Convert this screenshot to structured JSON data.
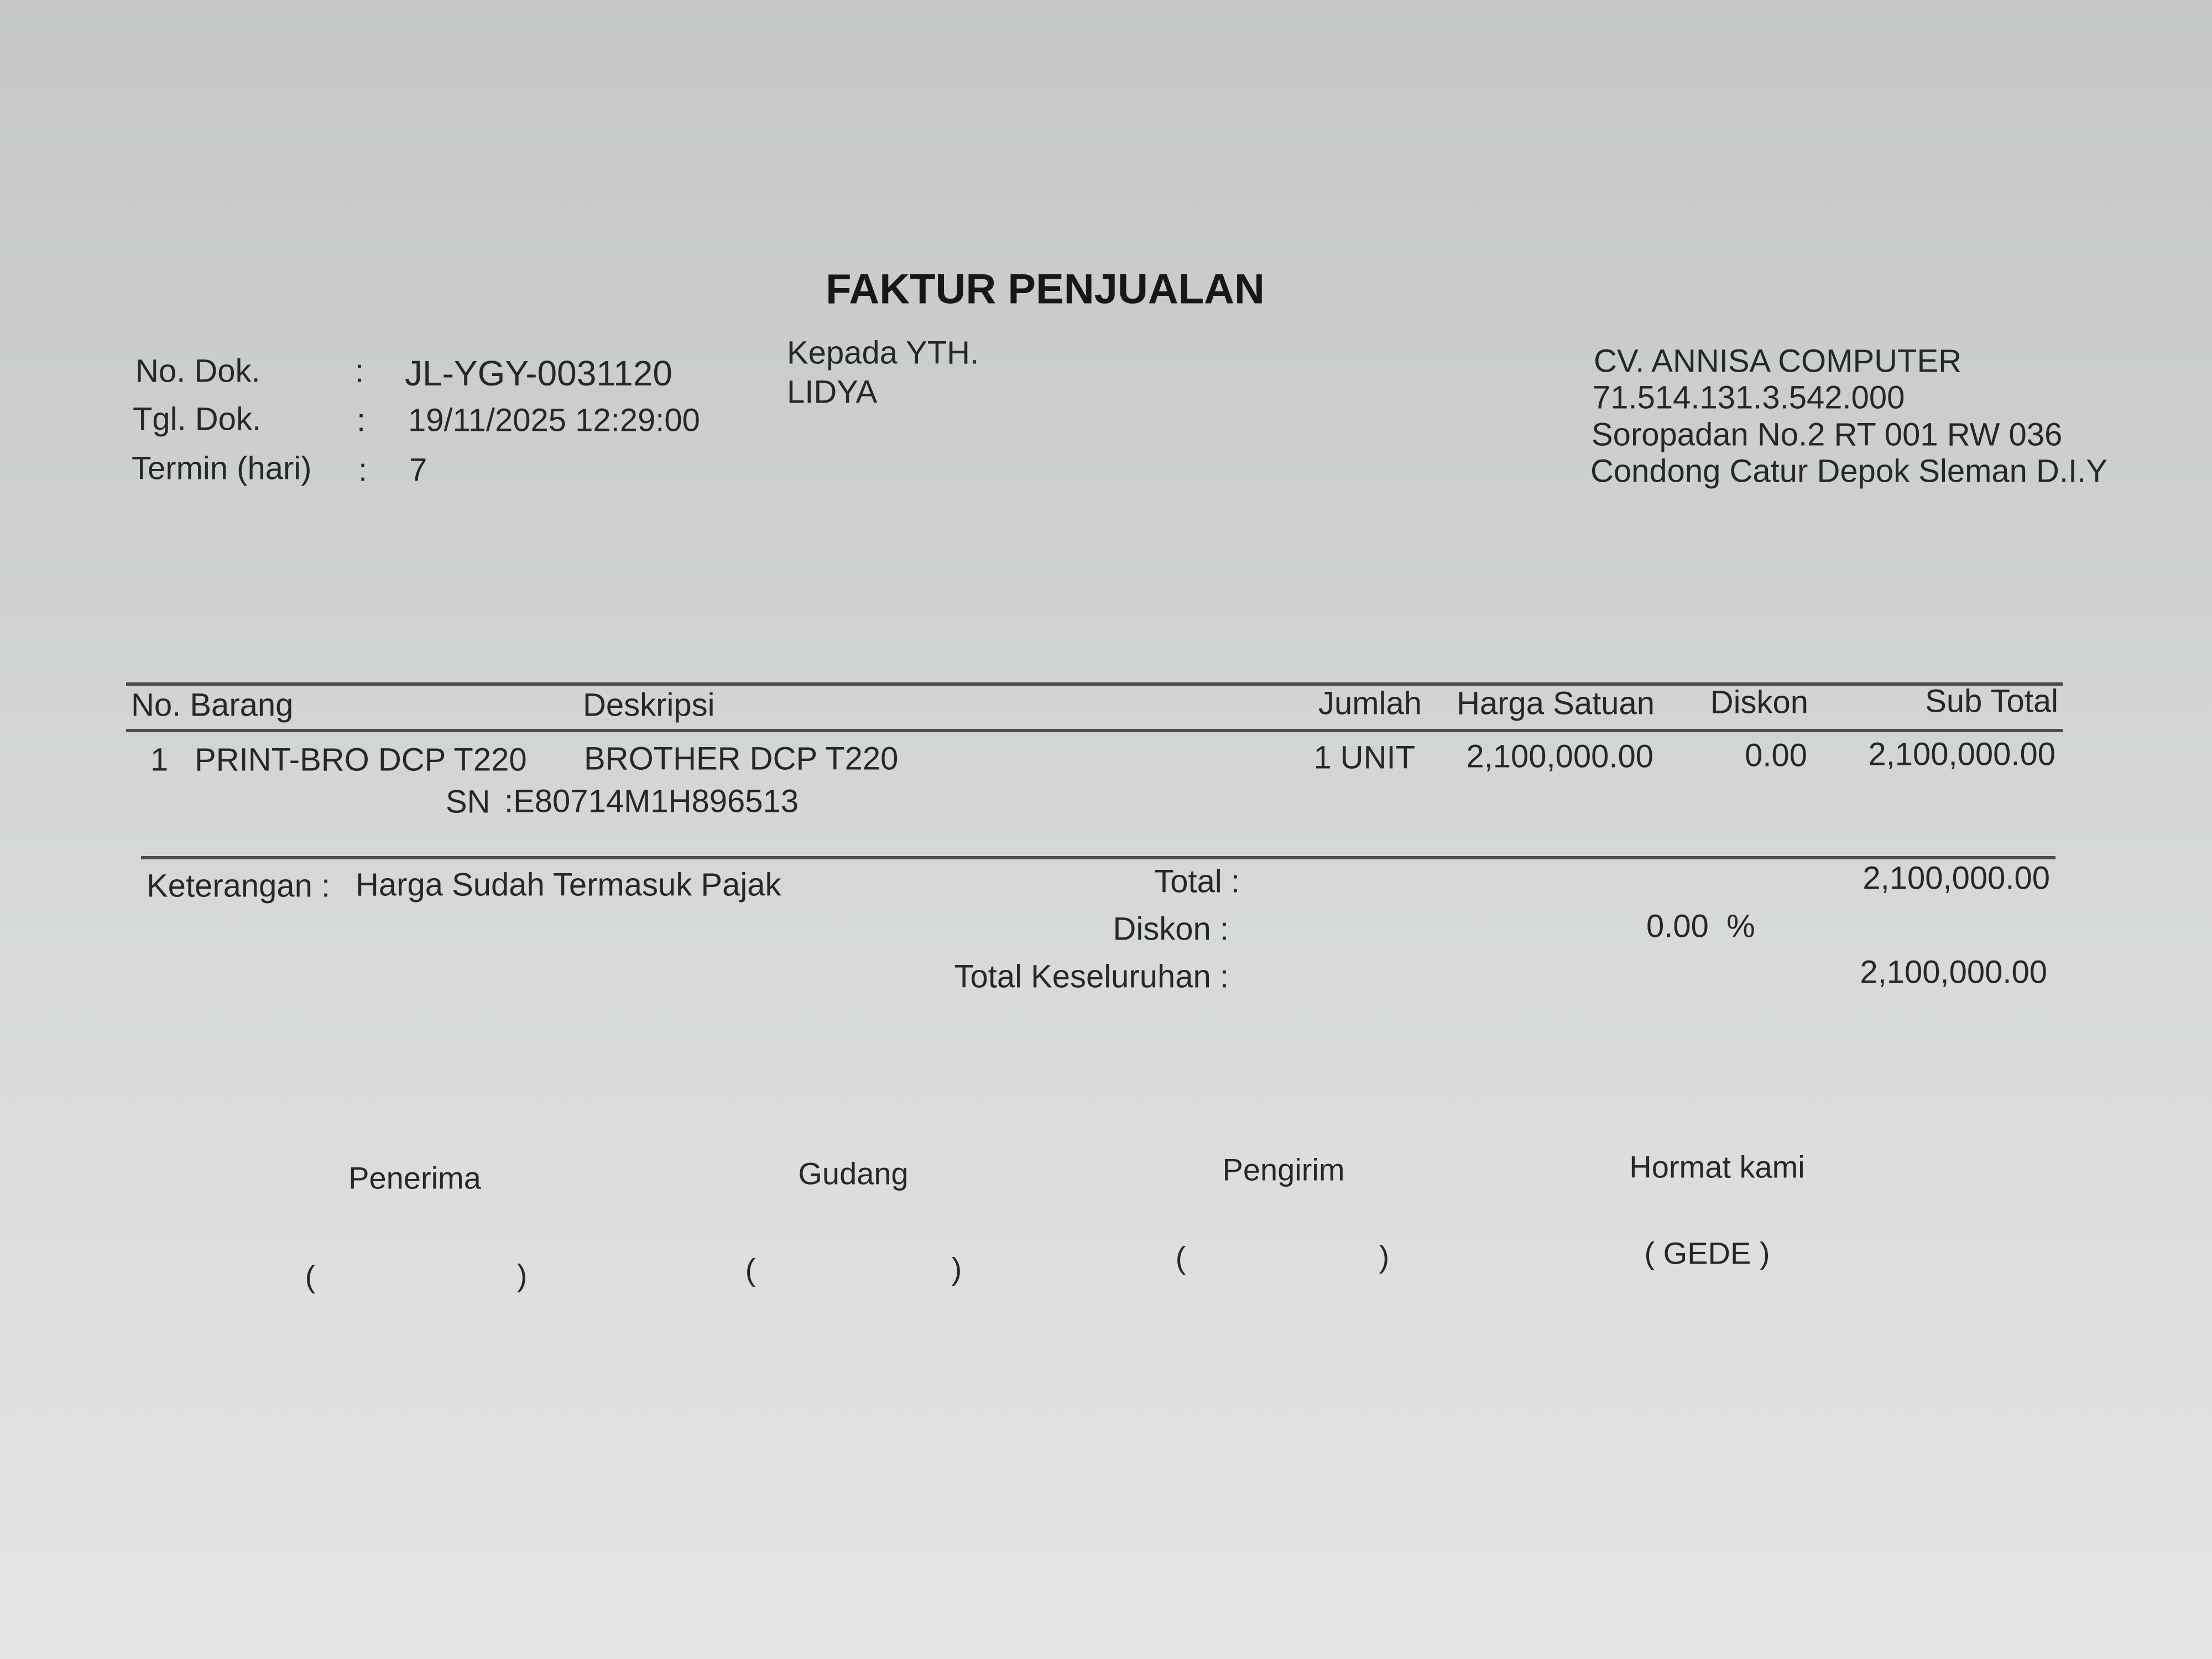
{
  "title": "FAKTUR PENJUALAN",
  "doc_info": {
    "no_dok_label": "No. Dok.",
    "no_dok_value": "JL-YGY-0031120",
    "tgl_dok_label": "Tgl. Dok.",
    "tgl_dok_value": "19/11/2025 12:29:00",
    "termin_label": "Termin (hari)",
    "termin_value": "7",
    "colon": ":"
  },
  "recipient": {
    "label": "Kepada YTH.",
    "name": "LIDYA"
  },
  "company": {
    "name": "CV. ANNISA COMPUTER",
    "npwp": "71.514.131.3.542.000",
    "address1": "Soropadan No.2  RT 001 RW 036",
    "address2": "Condong Catur Depok Sleman D.I.Y"
  },
  "table": {
    "headers": [
      "No. Barang",
      "Deskripsi",
      "Jumlah",
      "Harga Satuan",
      "Diskon",
      "Sub Total"
    ],
    "rows": [
      {
        "no": "1",
        "code": "PRINT-BRO DCP T220",
        "description": "BROTHER DCP T220",
        "qty": "1 UNIT",
        "unit_price": "2,100,000.00",
        "discount": "0.00",
        "subtotal": "2,100,000.00",
        "sn_label": "SN",
        "sn_value": ":E80714M1H896513"
      }
    ]
  },
  "summary": {
    "keterangan_label": "Keterangan :",
    "keterangan_value": "Harga Sudah Termasuk Pajak",
    "total_label": "Total :",
    "total_value": "2,100,000.00",
    "diskon_label": "Diskon :",
    "diskon_value": "0.00  %",
    "grand_total_label": "Total Keseluruhan :",
    "grand_total_value": "2,100,000.00"
  },
  "signatures": {
    "penerima": "Penerima",
    "gudang": "Gudang",
    "pengirim": "Pengirim",
    "hormat_kami": "Hormat kami",
    "open_paren": "(",
    "close_paren": ")",
    "signer": "( GEDE )"
  }
}
